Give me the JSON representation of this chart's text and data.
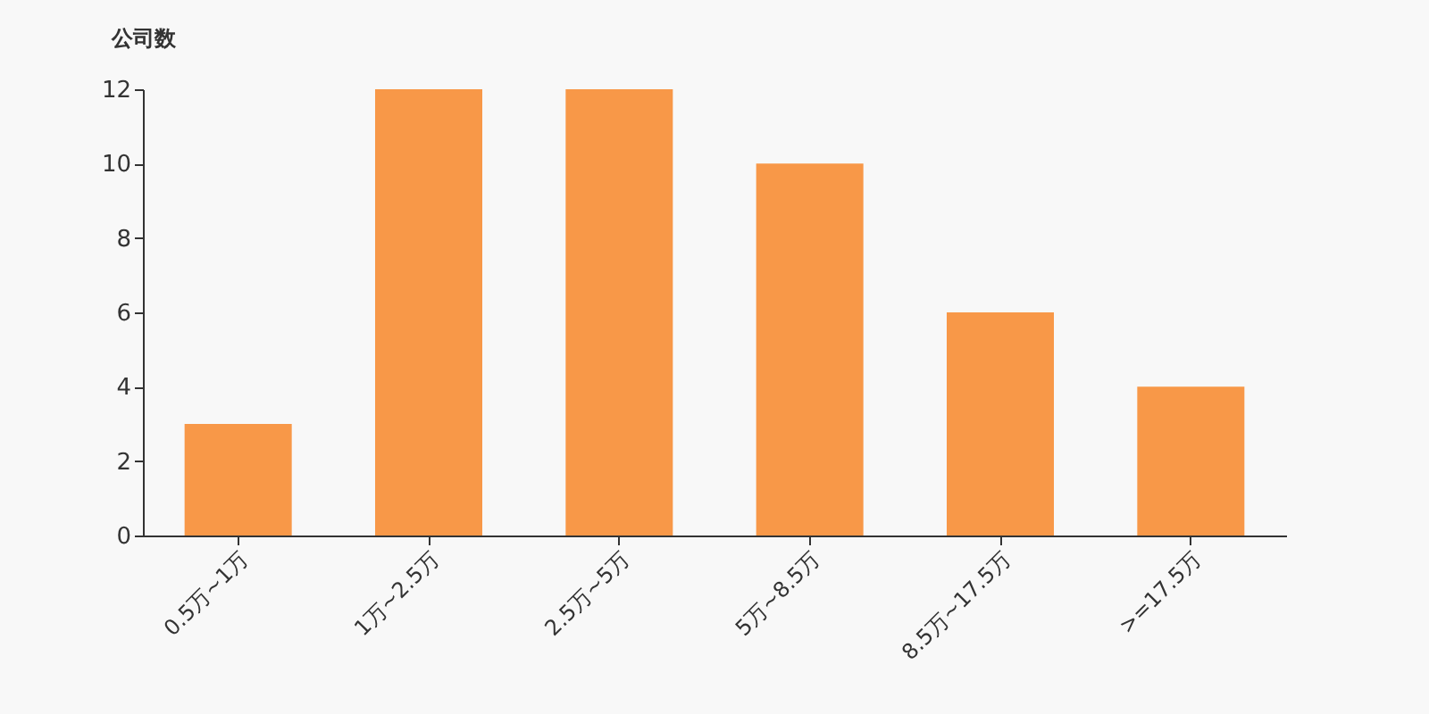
{
  "chart_data": {
    "type": "bar",
    "ylabel": "公司数",
    "categories": [
      "0.5万~1万",
      "1万~2.5万",
      "2.5万~5万",
      "5万~8.5万",
      "8.5万~17.5万",
      ">=17.5万"
    ],
    "values": [
      3,
      12,
      12,
      10,
      6,
      4
    ],
    "color": "#f89848",
    "ylim": [
      0,
      12
    ],
    "yticks": [
      0,
      2,
      4,
      6,
      8,
      10,
      12
    ],
    "grid": false
  }
}
